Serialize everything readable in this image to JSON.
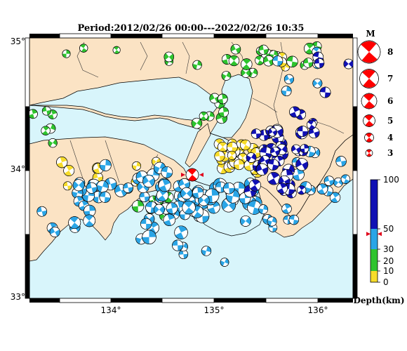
{
  "title": "Period:2012/02/26 00:00---2022/02/26 10:35",
  "axes": {
    "lon_ticks": [
      "134°",
      "135°",
      "136°"
    ],
    "lat_ticks": [
      "35°",
      "34°",
      "33°"
    ]
  },
  "magnitude_legend": {
    "header": "M",
    "items": [
      "8",
      "7",
      "6",
      "5",
      "4",
      "3"
    ]
  },
  "depth_legend": {
    "unit_label": "Depth(km)",
    "ticks": [
      "100",
      "50",
      "30",
      "20",
      "10",
      "0"
    ],
    "current_depth_km": 45
  },
  "colors": {
    "sea": "#d8f5fb",
    "land": "#fbe3c4",
    "depth_0_10": "#f7dc2a",
    "depth_10_30": "#2ec42e",
    "depth_30_50": "#2aa5e6",
    "depth_50_100": "#1010b4",
    "latest_event": "#ff0000"
  },
  "events_summary": {
    "latest_event": {
      "lon": 134.82,
      "lat": 33.97,
      "depth_km": 45,
      "mag": 5.2
    }
  }
}
